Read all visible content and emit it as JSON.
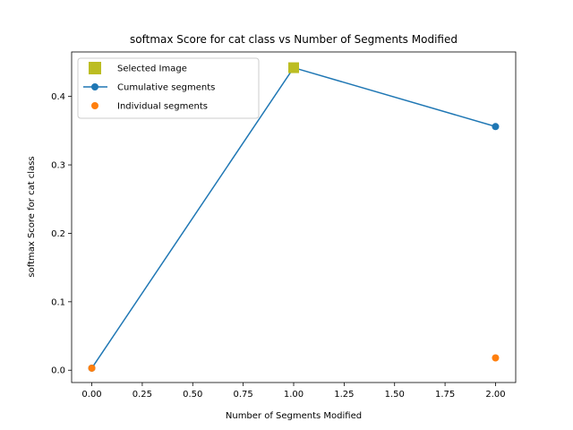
{
  "chart_data": {
    "type": "line",
    "title": "softmax Score for cat class vs Number of Segments Modified",
    "xlabel": "Number of Segments Modified",
    "ylabel": "softmax Score for cat class",
    "xlim": [
      -0.1,
      2.1
    ],
    "ylim": [
      -0.018,
      0.465
    ],
    "xticks": [
      0.0,
      0.25,
      0.5,
      0.75,
      1.0,
      1.25,
      1.5,
      1.75,
      2.0
    ],
    "xtick_labels": [
      "0.00",
      "0.25",
      "0.50",
      "0.75",
      "1.00",
      "1.25",
      "1.50",
      "1.75",
      "2.00"
    ],
    "yticks": [
      0.0,
      0.1,
      0.2,
      0.3,
      0.4
    ],
    "ytick_labels": [
      "0.0",
      "0.1",
      "0.2",
      "0.3",
      "0.4"
    ],
    "grid": false,
    "legend_position": "upper-left",
    "series": [
      {
        "name": "Selected Image",
        "marker": "square",
        "line": false,
        "color": "#bcbd22",
        "x": [
          1.0
        ],
        "y": [
          0.442
        ]
      },
      {
        "name": "Cumulative segments",
        "marker": "circle",
        "line": true,
        "color": "#1f77b4",
        "x": [
          0.0,
          1.0,
          2.0
        ],
        "y": [
          0.003,
          0.442,
          0.356
        ]
      },
      {
        "name": "Individual segments",
        "marker": "circle",
        "line": false,
        "color": "#ff7f0e",
        "x": [
          0.0,
          2.0
        ],
        "y": [
          0.003,
          0.018
        ]
      }
    ]
  }
}
